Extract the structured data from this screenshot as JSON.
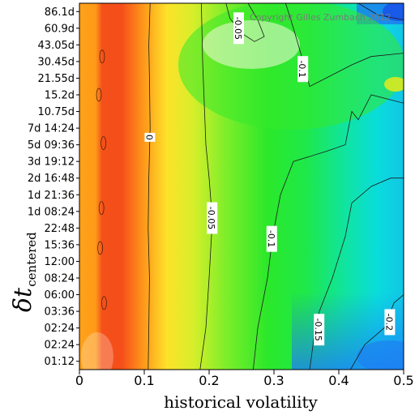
{
  "chart_data": {
    "type": "heatmap",
    "title": "",
    "xlabel": "historical volatility",
    "ylabel_main": "δt",
    "ylabel_sub": "centered",
    "xlim": [
      0,
      0.5
    ],
    "x_ticks": [
      "0",
      "0.1",
      "0.2",
      "0.3",
      "0.4",
      "0.5"
    ],
    "y_ticks": [
      "01:12",
      "02:24",
      "02:24",
      "03:36",
      "06:00",
      "08:24",
      "12:00",
      "15:36",
      "22:48",
      "1d 08:24",
      "1d 21:36",
      "2d 16:48",
      "3d 19:12",
      "5d 09:36",
      "7d 14:24",
      "10.75d",
      "15.2d",
      "21.55d",
      "30.45d",
      "43.05d",
      "60.9d",
      "86.1d"
    ],
    "copyright": "Copyright Gilles Zumbach 2012",
    "contour_labels": [
      {
        "text": "0",
        "x": 0.108,
        "y_index": 13.45
      },
      {
        "text": "-0.05",
        "x": 0.204,
        "y_index": 8.6
      },
      {
        "text": "-0.05",
        "x": 0.245,
        "y_index": 20.0
      },
      {
        "text": "-0.1",
        "x": 0.296,
        "y_index": 7.35
      },
      {
        "text": "-0.1",
        "x": 0.344,
        "y_index": 17.55
      },
      {
        "text": "-0.15",
        "x": 0.369,
        "y_index": 1.9
      },
      {
        "text": "-0.2",
        "x": 0.478,
        "y_index": 2.35
      }
    ]
  }
}
